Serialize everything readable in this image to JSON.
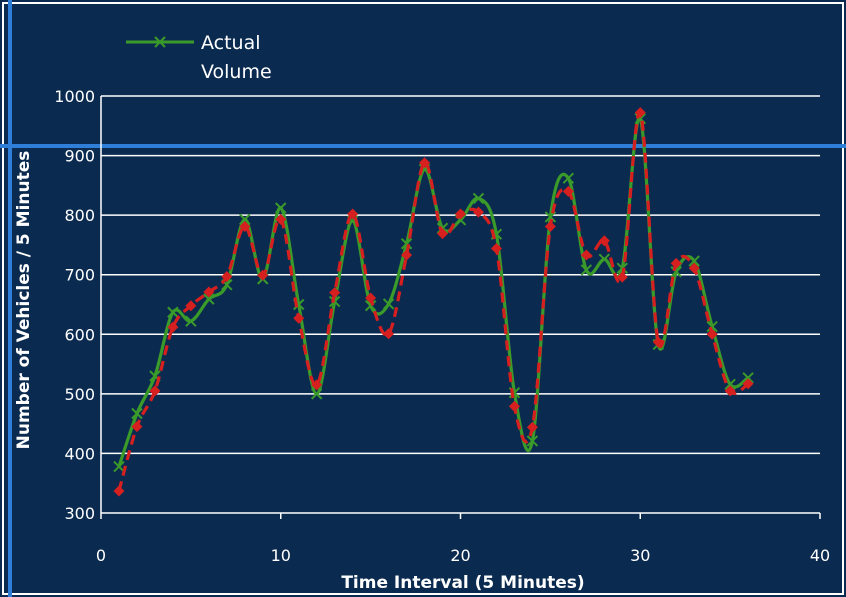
{
  "chart_data": {
    "type": "line",
    "title": "",
    "xlabel": "Time Interval (5 Minutes)",
    "ylabel": "Number of Vehicles / 5 Minutes",
    "xlim": [
      0,
      40
    ],
    "ylim": [
      300,
      1000
    ],
    "xticks": [
      0,
      10,
      20,
      30,
      40
    ],
    "yticks": [
      300,
      400,
      500,
      600,
      700,
      800,
      900,
      1000
    ],
    "grid": "horizontal",
    "legend_position": "top-left",
    "legend_lines": [
      "Actual",
      "Volume"
    ],
    "series": [
      {
        "name": "Actual Volume",
        "color": "#3a9a2a",
        "marker": "x",
        "style": "solid-smooth",
        "x": [
          1,
          2,
          3,
          4,
          5,
          6,
          7,
          8,
          9,
          10,
          11,
          12,
          13,
          14,
          15,
          16,
          17,
          18,
          19,
          20,
          21,
          22,
          23,
          24,
          25,
          26,
          27,
          28,
          29,
          30,
          31,
          32,
          33,
          34,
          35,
          36
        ],
        "y": [
          378,
          467,
          530,
          637,
          622,
          659,
          683,
          793,
          693,
          812,
          650,
          500,
          655,
          790,
          648,
          651,
          752,
          877,
          778,
          792,
          828,
          768,
          502,
          421,
          797,
          862,
          708,
          726,
          711,
          962,
          583,
          705,
          723,
          613,
          516,
          527
        ]
      },
      {
        "color": "#d61f1f",
        "marker": "diamond",
        "style": "dashed-smooth",
        "x": [
          1,
          2,
          3,
          4,
          5,
          6,
          7,
          8,
          9,
          10,
          11,
          12,
          13,
          14,
          15,
          16,
          17,
          18,
          19,
          20,
          21,
          22,
          23,
          24,
          25,
          26,
          27,
          28,
          29,
          30,
          31,
          32,
          33,
          34,
          35,
          36
        ],
        "y": [
          337,
          445,
          505,
          612,
          648,
          671,
          697,
          781,
          699,
          793,
          627,
          515,
          670,
          802,
          661,
          601,
          733,
          888,
          769,
          802,
          805,
          744,
          479,
          444,
          781,
          840,
          733,
          757,
          696,
          972,
          587,
          719,
          711,
          600,
          505,
          517
        ]
      }
    ],
    "colors": {
      "background": "#0a2a4f",
      "border": "#2f7fd9",
      "gridline": "#ffffff",
      "text": "#ffffff"
    }
  }
}
